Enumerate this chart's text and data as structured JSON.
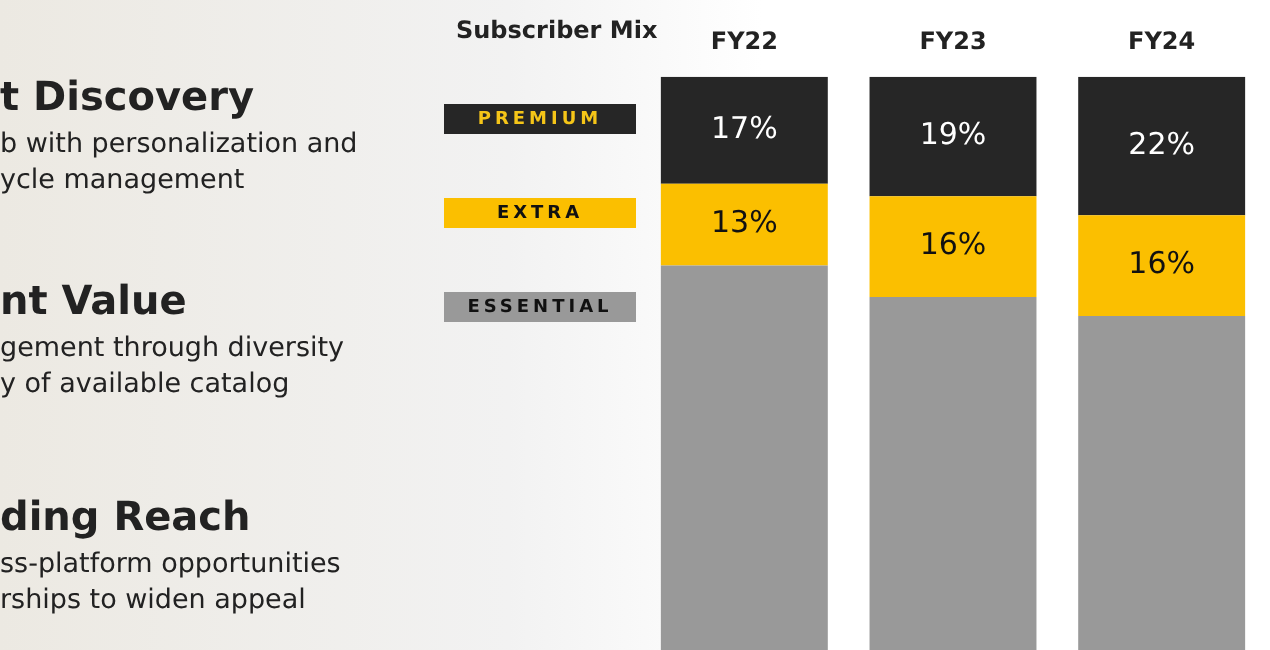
{
  "chart_data": {
    "type": "bar",
    "stacked": true,
    "title": "Subscriber Mix",
    "categories": [
      "FY22",
      "FY23",
      "FY24"
    ],
    "series": [
      {
        "name": "ESSENTIAL",
        "color": "#999999",
        "values": [
          70,
          65,
          62
        ],
        "value_labels": [
          null,
          null,
          null
        ]
      },
      {
        "name": "EXTRA",
        "color": "#fbbf00",
        "values": [
          13,
          16,
          16
        ],
        "value_labels": [
          "13%",
          "16%",
          "16%"
        ]
      },
      {
        "name": "PREMIUM",
        "color": "#262626",
        "values": [
          17,
          19,
          22
        ],
        "value_labels": [
          "17%",
          "19%",
          "22%"
        ]
      }
    ],
    "tick_labels": "x",
    "grid": false,
    "legend": "left",
    "annotations": [
      "t Discovery",
      "b with personalization and",
      "ycle management",
      "nt Value",
      "gement through diversity",
      "y of available catalog",
      "ding Reach",
      "ss-platform opportunities",
      "rships to widen appeal"
    ]
  }
}
